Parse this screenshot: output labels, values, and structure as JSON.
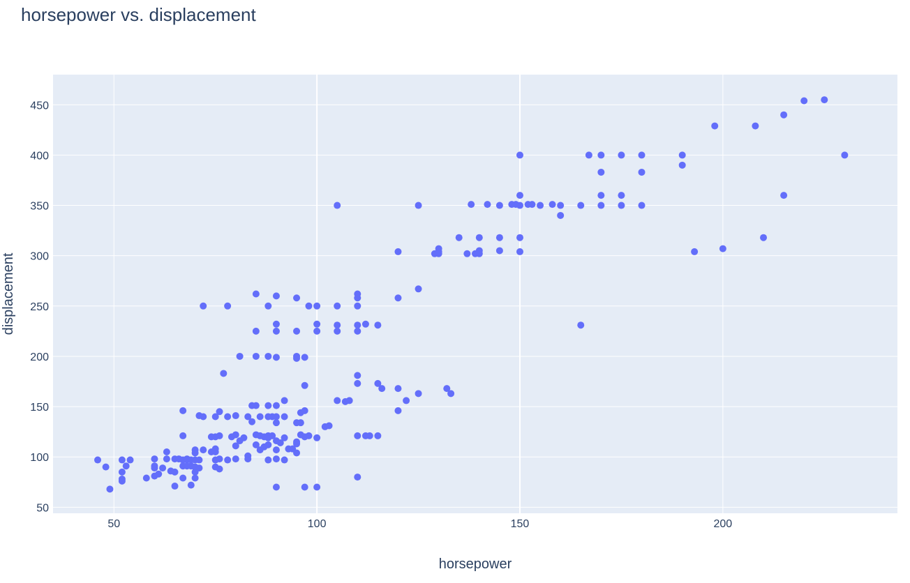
{
  "chart_data": {
    "type": "scatter",
    "title": "horsepower vs. displacement",
    "xlabel": "horsepower",
    "ylabel": "displacement",
    "xlim": [
      35,
      243
    ],
    "ylim": [
      44,
      480
    ],
    "x_ticks": [
      50,
      100,
      150,
      200
    ],
    "y_ticks": [
      50,
      100,
      150,
      200,
      250,
      300,
      350,
      400,
      450
    ],
    "grid": true,
    "colors": {
      "marker": "#636efa",
      "plot_bg": "#e5ecf6",
      "grid": "#ffffff",
      "text": "#2a3f5f"
    },
    "points": [
      [
        46,
        97
      ],
      [
        48,
        90
      ],
      [
        49,
        68
      ],
      [
        52,
        97
      ],
      [
        52,
        85
      ],
      [
        52,
        78
      ],
      [
        52,
        76
      ],
      [
        53,
        91
      ],
      [
        54,
        97
      ],
      [
        58,
        79
      ],
      [
        60,
        98
      ],
      [
        60,
        91
      ],
      [
        60,
        89
      ],
      [
        60,
        81
      ],
      [
        61,
        83
      ],
      [
        62,
        89
      ],
      [
        63,
        105
      ],
      [
        63,
        98
      ],
      [
        64,
        86
      ],
      [
        65,
        98
      ],
      [
        65,
        85
      ],
      [
        65,
        71
      ],
      [
        66,
        98
      ],
      [
        67,
        146
      ],
      [
        67,
        121
      ],
      [
        67,
        97
      ],
      [
        67,
        91
      ],
      [
        67,
        79
      ],
      [
        68,
        98
      ],
      [
        68,
        97
      ],
      [
        68,
        91
      ],
      [
        69,
        97
      ],
      [
        69,
        91
      ],
      [
        69,
        72
      ],
      [
        70,
        107
      ],
      [
        70,
        104
      ],
      [
        70,
        97
      ],
      [
        70,
        90
      ],
      [
        70,
        85
      ],
      [
        70,
        79
      ],
      [
        71,
        141
      ],
      [
        71,
        97
      ],
      [
        71,
        89
      ],
      [
        72,
        140
      ],
      [
        72,
        250
      ],
      [
        72,
        107
      ],
      [
        74,
        120
      ],
      [
        74,
        105
      ],
      [
        75,
        140
      ],
      [
        75,
        120
      ],
      [
        75,
        108
      ],
      [
        75,
        105
      ],
      [
        75,
        97
      ],
      [
        75,
        90
      ],
      [
        76,
        145
      ],
      [
        76,
        121
      ],
      [
        76,
        98
      ],
      [
        76,
        88
      ],
      [
        77,
        183
      ],
      [
        78,
        250
      ],
      [
        78,
        140
      ],
      [
        78,
        97
      ],
      [
        79,
        120
      ],
      [
        80,
        141
      ],
      [
        80,
        122
      ],
      [
        80,
        111
      ],
      [
        80,
        98
      ],
      [
        81,
        200
      ],
      [
        81,
        116
      ],
      [
        82,
        119
      ],
      [
        83,
        140
      ],
      [
        83,
        101
      ],
      [
        83,
        98
      ],
      [
        84,
        151
      ],
      [
        84,
        135
      ],
      [
        85,
        262
      ],
      [
        85,
        225
      ],
      [
        85,
        200
      ],
      [
        85,
        151
      ],
      [
        85,
        122
      ],
      [
        85,
        112
      ],
      [
        86,
        140
      ],
      [
        86,
        121
      ],
      [
        86,
        107
      ],
      [
        87,
        120
      ],
      [
        87,
        110
      ],
      [
        88,
        250
      ],
      [
        88,
        200
      ],
      [
        88,
        151
      ],
      [
        88,
        140
      ],
      [
        88,
        121
      ],
      [
        88,
        119
      ],
      [
        88,
        112
      ],
      [
        88,
        97
      ],
      [
        89,
        140
      ],
      [
        89,
        121
      ],
      [
        90,
        260
      ],
      [
        90,
        232
      ],
      [
        90,
        225
      ],
      [
        90,
        199
      ],
      [
        90,
        151
      ],
      [
        90,
        140
      ],
      [
        90,
        134
      ],
      [
        90,
        116
      ],
      [
        90,
        107
      ],
      [
        90,
        98
      ],
      [
        90,
        70
      ],
      [
        91,
        114
      ],
      [
        92,
        156
      ],
      [
        92,
        140
      ],
      [
        92,
        119
      ],
      [
        92,
        97
      ],
      [
        93,
        108
      ],
      [
        94,
        108
      ],
      [
        95,
        258
      ],
      [
        95,
        225
      ],
      [
        95,
        200
      ],
      [
        95,
        198
      ],
      [
        95,
        134
      ],
      [
        95,
        115
      ],
      [
        95,
        113
      ],
      [
        95,
        104
      ],
      [
        96,
        144
      ],
      [
        96,
        134
      ],
      [
        96,
        122
      ],
      [
        97,
        199
      ],
      [
        97,
        171
      ],
      [
        97,
        146
      ],
      [
        97,
        120
      ],
      [
        97,
        70
      ],
      [
        98,
        121
      ],
      [
        98,
        250
      ],
      [
        100,
        250
      ],
      [
        100,
        232
      ],
      [
        100,
        225
      ],
      [
        100,
        119
      ],
      [
        100,
        70
      ],
      [
        102,
        130
      ],
      [
        103,
        131
      ],
      [
        105,
        350
      ],
      [
        105,
        250
      ],
      [
        105,
        231
      ],
      [
        105,
        225
      ],
      [
        105,
        156
      ],
      [
        107,
        155
      ],
      [
        108,
        156
      ],
      [
        110,
        262
      ],
      [
        110,
        258
      ],
      [
        110,
        250
      ],
      [
        110,
        231
      ],
      [
        110,
        225
      ],
      [
        110,
        181
      ],
      [
        110,
        173
      ],
      [
        110,
        121
      ],
      [
        110,
        80
      ],
      [
        112,
        232
      ],
      [
        112,
        121
      ],
      [
        113,
        121
      ],
      [
        115,
        231
      ],
      [
        115,
        173
      ],
      [
        115,
        121
      ],
      [
        116,
        168
      ],
      [
        120,
        304
      ],
      [
        120,
        258
      ],
      [
        120,
        168
      ],
      [
        120,
        146
      ],
      [
        122,
        156
      ],
      [
        125,
        350
      ],
      [
        125,
        267
      ],
      [
        125,
        163
      ],
      [
        129,
        302
      ],
      [
        130,
        307
      ],
      [
        130,
        304
      ],
      [
        130,
        302
      ],
      [
        132,
        168
      ],
      [
        133,
        163
      ],
      [
        135,
        318
      ],
      [
        137,
        302
      ],
      [
        138,
        351
      ],
      [
        139,
        302
      ],
      [
        140,
        318
      ],
      [
        140,
        305
      ],
      [
        140,
        302
      ],
      [
        142,
        351
      ],
      [
        145,
        350
      ],
      [
        145,
        318
      ],
      [
        145,
        305
      ],
      [
        148,
        351
      ],
      [
        149,
        351
      ],
      [
        150,
        400
      ],
      [
        150,
        360
      ],
      [
        150,
        350
      ],
      [
        150,
        318
      ],
      [
        150,
        304
      ],
      [
        152,
        351
      ],
      [
        153,
        351
      ],
      [
        155,
        350
      ],
      [
        158,
        351
      ],
      [
        160,
        350
      ],
      [
        160,
        340
      ],
      [
        165,
        350
      ],
      [
        165,
        231
      ],
      [
        167,
        400
      ],
      [
        170,
        400
      ],
      [
        170,
        383
      ],
      [
        170,
        360
      ],
      [
        170,
        350
      ],
      [
        175,
        400
      ],
      [
        175,
        360
      ],
      [
        175,
        350
      ],
      [
        180,
        400
      ],
      [
        180,
        383
      ],
      [
        180,
        350
      ],
      [
        190,
        400
      ],
      [
        190,
        390
      ],
      [
        193,
        304
      ],
      [
        198,
        429
      ],
      [
        200,
        307
      ],
      [
        208,
        429
      ],
      [
        210,
        318
      ],
      [
        215,
        440
      ],
      [
        215,
        360
      ],
      [
        220,
        454
      ],
      [
        225,
        455
      ],
      [
        230,
        400
      ]
    ]
  }
}
